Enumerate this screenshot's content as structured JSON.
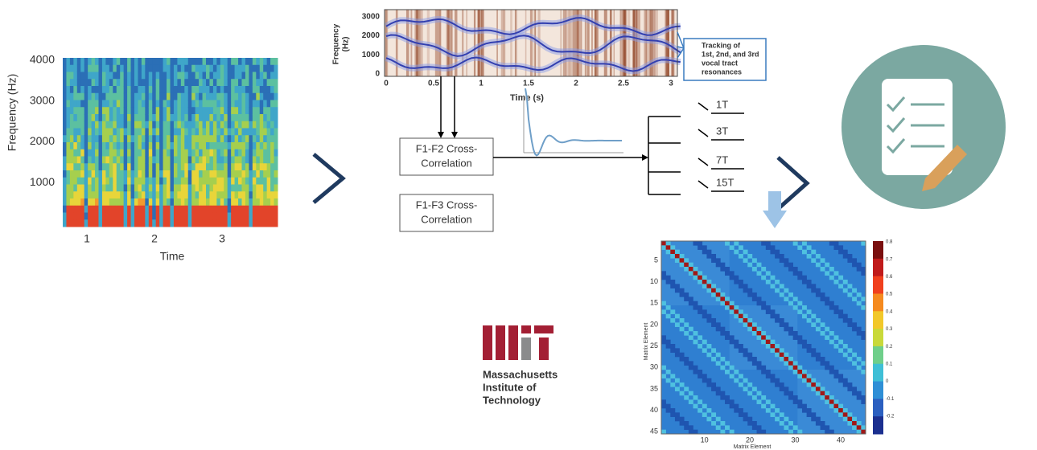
{
  "spectrogram": {
    "y_label": "Frequency (Hz)",
    "x_label": "Time",
    "y_ticks": [
      4000,
      3000,
      2000,
      1000
    ],
    "x_ticks": [
      1,
      2,
      3
    ]
  },
  "formant_plot": {
    "y_label": [
      "Frequency",
      "(Hz)"
    ],
    "x_label": "Time (s)",
    "y_ticks": [
      3000,
      2000,
      1000,
      0
    ],
    "x_ticks": [
      0,
      0.5,
      1,
      1.5,
      2,
      2.5,
      3
    ],
    "annotation": [
      "Tracking of",
      "1st, 2nd, and 3rd",
      "vocal tract",
      "resonances"
    ]
  },
  "correlation_boxes": [
    [
      "F1-F2 Cross-",
      "Correlation"
    ],
    [
      "F1-F3 Cross-",
      "Correlation"
    ]
  ],
  "delays": [
    "1T",
    "3T",
    "7T",
    "15T"
  ],
  "matrix": {
    "y_ticks": [
      5,
      10,
      15,
      20,
      25,
      30,
      35,
      40,
      45
    ],
    "x_ticks": [
      10,
      20,
      30,
      40
    ],
    "x_label": "Matrix Element",
    "y_label": "Matrix Element",
    "colorbar_ticks": [
      0.8,
      0.7,
      0.6,
      0.5,
      0.4,
      0.3,
      0.2,
      0.1,
      0,
      -0.1,
      -0.2
    ]
  },
  "logo": {
    "lines": [
      "Massachusetts",
      "Institute of",
      "Technology"
    ]
  }
}
